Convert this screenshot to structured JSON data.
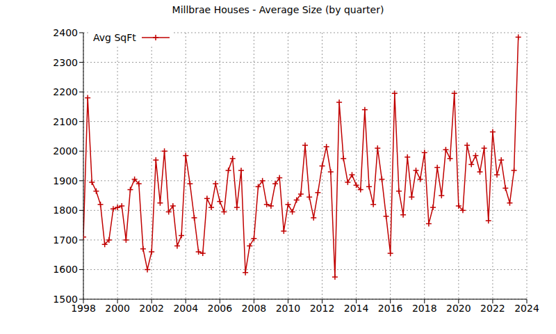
{
  "chart_data": {
    "type": "line",
    "title": "Millbrae Houses - Average Size (by quarter)",
    "x": [
      1998,
      1998.25,
      1998.5,
      1998.75,
      1999,
      1999.25,
      1999.5,
      1999.75,
      2000,
      2000.25,
      2000.5,
      2000.75,
      2001,
      2001.25,
      2001.5,
      2001.75,
      2002,
      2002.25,
      2002.5,
      2002.75,
      2003,
      2003.25,
      2003.5,
      2003.75,
      2004,
      2004.25,
      2004.5,
      2004.75,
      2005,
      2005.25,
      2005.5,
      2005.75,
      2006,
      2006.25,
      2006.5,
      2006.75,
      2007,
      2007.25,
      2007.5,
      2007.75,
      2008,
      2008.25,
      2008.5,
      2008.75,
      2009,
      2009.25,
      2009.5,
      2009.75,
      2010,
      2010.25,
      2010.5,
      2010.75,
      2011,
      2011.25,
      2011.5,
      2011.75,
      2012,
      2012.25,
      2012.5,
      2012.75,
      2013,
      2013.25,
      2013.5,
      2013.75,
      2014,
      2014.25,
      2014.5,
      2014.75,
      2015,
      2015.25,
      2015.5,
      2015.75,
      2016,
      2016.25,
      2016.5,
      2016.75,
      2017,
      2017.25,
      2017.5,
      2017.75,
      2018,
      2018.25,
      2018.5,
      2018.75,
      2019,
      2019.25,
      2019.5,
      2019.75,
      2020,
      2020.25,
      2020.5,
      2020.75,
      2021,
      2021.25,
      2021.5,
      2021.75,
      2022,
      2022.25,
      2022.5,
      2022.75,
      2023,
      2023.25,
      2023.5
    ],
    "series": [
      {
        "name": "Avg SqFt",
        "color": "#c00000",
        "marker": "plus",
        "line_style": "solid",
        "values": [
          1710,
          2180,
          1895,
          1865,
          1820,
          1685,
          1700,
          1805,
          1810,
          1815,
          1700,
          1870,
          1905,
          1890,
          1670,
          1600,
          1660,
          1970,
          1825,
          2000,
          1795,
          1815,
          1680,
          1715,
          1985,
          1890,
          1775,
          1660,
          1655,
          1840,
          1810,
          1890,
          1830,
          1795,
          1935,
          1975,
          1810,
          1935,
          1590,
          1680,
          1705,
          1880,
          1900,
          1820,
          1815,
          1890,
          1910,
          1730,
          1820,
          1795,
          1835,
          1855,
          2020,
          1845,
          1775,
          1860,
          1950,
          2015,
          1930,
          1575,
          2165,
          1975,
          1895,
          1920,
          1885,
          1870,
          2140,
          1880,
          1820,
          2010,
          1905,
          1780,
          1655,
          2195,
          1865,
          1785,
          1980,
          1845,
          1935,
          1905,
          1995,
          1755,
          1810,
          1945,
          1850,
          2005,
          1975,
          2195,
          1815,
          1800,
          2020,
          1955,
          1985,
          1930,
          2010,
          1765,
          2065,
          1920,
          1970,
          1875,
          1825,
          1935,
          2385
        ]
      }
    ],
    "xlim": [
      1998,
      2024
    ],
    "xticks": [
      1998,
      2000,
      2002,
      2004,
      2006,
      2008,
      2010,
      2012,
      2014,
      2016,
      2018,
      2020,
      2022,
      2024
    ],
    "ylim": [
      1500,
      2400
    ],
    "yticks": [
      1500,
      1600,
      1700,
      1800,
      1900,
      2000,
      2100,
      2200,
      2300,
      2400
    ],
    "grid": true,
    "legend": "upper left"
  }
}
